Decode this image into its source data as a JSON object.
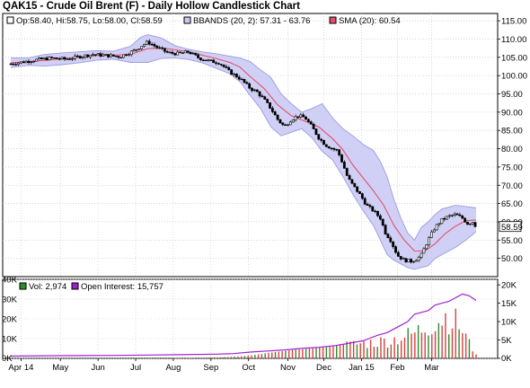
{
  "title": "QAK15 - Crude Oil Brent (F) - Daily Hollow Candlestick Chart",
  "price_legend": {
    "ohlc": "Op:58.40, Hi:58.75, Lo:58.00, Cl:58.59",
    "bbands": "BBANDS (20, 2): 57.31 - 63.76",
    "sma": "SMA (20): 60.54"
  },
  "volume_legend": {
    "vol": "Vol: 2,974",
    "oi": "Open Interest: 15,757"
  },
  "last_price_label": "58.59",
  "colors": {
    "bbands_fill": "#c8c8f5",
    "bbands_line": "#9a9ae0",
    "sma": "#e0506a",
    "vol_up": "#2e8b2e",
    "vol_down": "#d84040",
    "oi": "#a020d0",
    "grid": "#bfbfbf"
  },
  "chart_data": [
    {
      "type": "candlestick",
      "title": "QAK15 - Crude Oil Brent (F) - Daily Hollow Candlestick Chart",
      "x_tick_labels": [
        "Apr 14",
        "May",
        "Jun",
        "Jul",
        "Aug",
        "Sep",
        "Oct",
        "Nov",
        "Dec",
        "Jan 15",
        "Feb",
        "Mar"
      ],
      "y_ticks": [
        50,
        55,
        60,
        65,
        70,
        75,
        80,
        85,
        90,
        95,
        100,
        105,
        110,
        115
      ],
      "ylim": [
        45,
        117
      ],
      "last_close": 58.59,
      "grid": true,
      "series": [
        {
          "name": "Price (approx. close)",
          "points": [
            [
              0,
              103.2
            ],
            [
              8,
              103.8
            ],
            [
              16,
              104.4
            ],
            [
              24,
              104.8
            ],
            [
              32,
              104.5
            ],
            [
              40,
              105.2
            ],
            [
              48,
              105.8
            ],
            [
              56,
              105.5
            ],
            [
              64,
              105.2
            ],
            [
              72,
              106.8
            ],
            [
              76,
              108.0
            ],
            [
              80,
              109.2
            ],
            [
              86,
              107.6
            ],
            [
              92,
              106.2
            ],
            [
              98,
              106.0
            ],
            [
              104,
              106.5
            ],
            [
              110,
              104.8
            ],
            [
              116,
              104.0
            ],
            [
              122,
              103.5
            ],
            [
              128,
              101.0
            ],
            [
              134,
              99.2
            ],
            [
              140,
              96.5
            ],
            [
              144,
              95.5
            ],
            [
              148,
              93.5
            ],
            [
              152,
              91.0
            ],
            [
              156,
              88.0
            ],
            [
              160,
              86.0
            ],
            [
              164,
              88.0
            ],
            [
              168,
              89.0
            ],
            [
              172,
              88.5
            ],
            [
              176,
              86.0
            ],
            [
              180,
              83.0
            ],
            [
              184,
              81.0
            ],
            [
              188,
              80.0
            ],
            [
              191,
              79.5
            ],
            [
              194,
              76.0
            ],
            [
              197,
              72.0
            ],
            [
              200,
              70.0
            ],
            [
              204,
              67.5
            ],
            [
              208,
              64.5
            ],
            [
              212,
              63.0
            ],
            [
              216,
              61.0
            ],
            [
              219,
              57.0
            ],
            [
              222,
              55.0
            ],
            [
              226,
              50.8
            ],
            [
              230,
              49.5
            ],
            [
              234,
              49.2
            ],
            [
              238,
              50.0
            ],
            [
              240,
              51.0
            ],
            [
              242,
              53.0
            ],
            [
              245,
              56.0
            ],
            [
              248,
              58.5
            ],
            [
              252,
              60.5
            ],
            [
              256,
              61.5
            ],
            [
              260,
              62.0
            ],
            [
              264,
              61.0
            ],
            [
              267,
              59.5
            ],
            [
              270,
              60.0
            ],
            [
              272,
              58.6
            ]
          ]
        },
        {
          "name": "SMA (20)",
          "points": [
            [
              0,
              103.5
            ],
            [
              10,
              103.8
            ],
            [
              20,
              104.2
            ],
            [
              30,
              104.6
            ],
            [
              40,
              105.0
            ],
            [
              50,
              105.5
            ],
            [
              60,
              105.6
            ],
            [
              70,
              105.8
            ],
            [
              80,
              107.4
            ],
            [
              90,
              107.5
            ],
            [
              100,
              106.8
            ],
            [
              110,
              105.8
            ],
            [
              120,
              104.7
            ],
            [
              128,
              103.6
            ],
            [
              134,
              102.3
            ],
            [
              140,
              99.7
            ],
            [
              148,
              96.5
            ],
            [
              156,
              92.0
            ],
            [
              164,
              89.0
            ],
            [
              172,
              87.5
            ],
            [
              180,
              86.0
            ],
            [
              188,
              82.8
            ],
            [
              194,
              79.8
            ],
            [
              200,
              75.5
            ],
            [
              206,
              72.0
            ],
            [
              212,
              68.5
            ],
            [
              218,
              64.5
            ],
            [
              224,
              59.0
            ],
            [
              230,
              55.0
            ],
            [
              236,
              52.0
            ],
            [
              242,
              52.0
            ],
            [
              248,
              54.0
            ],
            [
              254,
              56.8
            ],
            [
              260,
              58.8
            ],
            [
              266,
              60.3
            ],
            [
              272,
              60.5
            ]
          ]
        },
        {
          "name": "BBANDS (20, 2) upper",
          "points": [
            [
              0,
              104.8
            ],
            [
              10,
              104.8
            ],
            [
              20,
              105.8
            ],
            [
              30,
              106.2
            ],
            [
              40,
              106.5
            ],
            [
              50,
              106.8
            ],
            [
              60,
              106.7
            ],
            [
              70,
              108.0
            ],
            [
              76,
              110.5
            ],
            [
              80,
              111.2
            ],
            [
              88,
              110.3
            ],
            [
              96,
              108.2
            ],
            [
              104,
              107.2
            ],
            [
              112,
              106.5
            ],
            [
              120,
              106.0
            ],
            [
              128,
              105.3
            ],
            [
              134,
              104.8
            ],
            [
              140,
              103.8
            ],
            [
              146,
              101.6
            ],
            [
              152,
              99.5
            ],
            [
              158,
              95.0
            ],
            [
              164,
              92.3
            ],
            [
              170,
              90.0
            ],
            [
              176,
              91.0
            ],
            [
              182,
              92.3
            ],
            [
              188,
              88.5
            ],
            [
              194,
              85.5
            ],
            [
              200,
              83.5
            ],
            [
              206,
              81.2
            ],
            [
              212,
              79.5
            ],
            [
              216,
              76.5
            ],
            [
              220,
              72.3
            ],
            [
              224,
              66.0
            ],
            [
              228,
              61.0
            ],
            [
              232,
              57.0
            ],
            [
              236,
              55.0
            ],
            [
              240,
              58.5
            ],
            [
              244,
              60.0
            ],
            [
              248,
              62.0
            ],
            [
              252,
              63.5
            ],
            [
              256,
              64.0
            ],
            [
              260,
              64.5
            ],
            [
              266,
              64.2
            ],
            [
              272,
              63.8
            ]
          ]
        },
        {
          "name": "BBANDS (20, 2) lower",
          "points": [
            [
              0,
              102.2
            ],
            [
              10,
              102.8
            ],
            [
              20,
              102.6
            ],
            [
              30,
              103.0
            ],
            [
              40,
              103.5
            ],
            [
              50,
              104.2
            ],
            [
              60,
              104.5
            ],
            [
              70,
              103.6
            ],
            [
              80,
              103.6
            ],
            [
              88,
              104.7
            ],
            [
              96,
              104.8
            ],
            [
              104,
              104.4
            ],
            [
              112,
              103.5
            ],
            [
              120,
              102.0
            ],
            [
              128,
              100.5
            ],
            [
              134,
              98.3
            ],
            [
              140,
              94.5
            ],
            [
              146,
              91.0
            ],
            [
              152,
              86.0
            ],
            [
              158,
              83.5
            ],
            [
              164,
              84.5
            ],
            [
              170,
              85.5
            ],
            [
              176,
              83.0
            ],
            [
              182,
              79.3
            ],
            [
              188,
              77.0
            ],
            [
              194,
              72.5
            ],
            [
              200,
              67.5
            ],
            [
              206,
              63.0
            ],
            [
              212,
              59.0
            ],
            [
              216,
              55.0
            ],
            [
              220,
              51.0
            ],
            [
              224,
              49.5
            ],
            [
              228,
              48.5
            ],
            [
              232,
              47.5
            ],
            [
              236,
              47.0
            ],
            [
              240,
              47.5
            ],
            [
              244,
              48.0
            ],
            [
              248,
              50.0
            ],
            [
              252,
              51.0
            ],
            [
              256,
              52.0
            ],
            [
              260,
              53.0
            ],
            [
              266,
              55.0
            ],
            [
              272,
              57.3
            ]
          ]
        }
      ]
    },
    {
      "type": "bar",
      "title": "",
      "y_ticks_left": [
        "0K",
        "10K",
        "20K",
        "30K",
        "40K"
      ],
      "y_ticks_right": [
        "0K",
        "5K",
        "10K",
        "15K",
        "20K"
      ],
      "ylim_left": [
        0,
        40000
      ],
      "ylim_right": [
        0,
        21500
      ],
      "last_volume": 2974,
      "last_open_interest": 15757,
      "series": [
        {
          "name": "Vol",
          "values": [
            100,
            100,
            150,
            150,
            200,
            200,
            250,
            300,
            300,
            350,
            400,
            400,
            500,
            500,
            600,
            650,
            700,
            800,
            900,
            1000,
            1100,
            1200,
            1400,
            1600,
            1800,
            2000,
            2200,
            2500,
            2800,
            3000,
            3200,
            3400,
            3600,
            3800,
            4000,
            4200,
            4400,
            4500,
            4600,
            4800,
            5000,
            5200,
            5400,
            5600,
            5800,
            6000,
            6200,
            6400,
            6600,
            6800,
            7000,
            7200,
            7400,
            7600,
            7800,
            8000,
            8200,
            8400,
            8600,
            8800,
            9000,
            9200,
            9500,
            9800,
            10000,
            10500,
            11000,
            11500,
            12000,
            12500,
            13000,
            14000,
            15000,
            16000,
            17000,
            18000,
            19000,
            20000,
            21000,
            22000,
            23000,
            22000,
            21000,
            20000,
            18000,
            15000,
            12000,
            8000,
            5000,
            2974
          ]
        },
        {
          "name": "Open Interest",
          "points": [
            [
              0,
              600
            ],
            [
              20,
              700
            ],
            [
              40,
              750
            ],
            [
              60,
              800
            ],
            [
              80,
              900
            ],
            [
              100,
              1000
            ],
            [
              120,
              1150
            ],
            [
              130,
              1300
            ],
            [
              140,
              1700
            ],
            [
              150,
              2000
            ],
            [
              160,
              2300
            ],
            [
              170,
              2700
            ],
            [
              180,
              3000
            ],
            [
              190,
              3500
            ],
            [
              200,
              4300
            ],
            [
              206,
              4800
            ],
            [
              210,
              5500
            ],
            [
              214,
              6200
            ],
            [
              220,
              7000
            ],
            [
              226,
              8500
            ],
            [
              232,
              10000
            ],
            [
              236,
              12000
            ],
            [
              240,
              12500
            ],
            [
              244,
              13000
            ],
            [
              248,
              14500
            ],
            [
              252,
              15000
            ],
            [
              256,
              15500
            ],
            [
              260,
              16500
            ],
            [
              264,
              17500
            ],
            [
              268,
              17000
            ],
            [
              272,
              15757
            ]
          ]
        }
      ]
    }
  ]
}
